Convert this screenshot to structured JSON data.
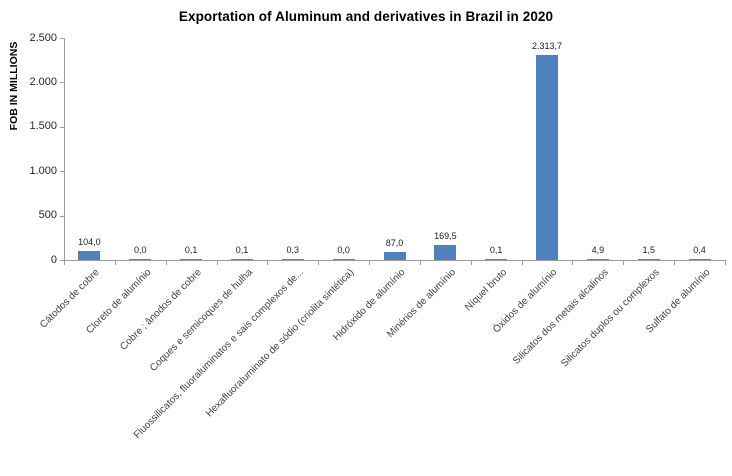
{
  "chart_data": {
    "type": "bar",
    "title": "Exportation of Aluminum and derivatives in Brazil in 2020",
    "xlabel": "",
    "ylabel": "FOB IN MILLIONS",
    "ylim": [
      0,
      2500
    ],
    "ytick_step": 500,
    "ytick_labels": [
      "2.500",
      "2.000",
      "1.500",
      "1.000",
      "500",
      "0"
    ],
    "grid": false,
    "legend": false,
    "bar_color": "#4f81bd",
    "axis_color": "#9c9c9c",
    "categories": [
      "Cátodos de cobre",
      "Cloreto de alumínio",
      "Cobre ; ânodos de cobre",
      "Coques e semicoques de hulha",
      "Fluossilicatos, fluoraluminatos e sais complexos de...",
      "Hexafluoraluminato de sódio (criolita sintética)",
      "Hidróxido de alumínio",
      "Minérios de alumínio",
      "Níquel bruto",
      "Óxidos de alumínio",
      "Silicatos dos metais alcalinos",
      "Silicatos duplos ou complexos",
      "Sulfato de alumínio"
    ],
    "values": [
      104.0,
      0.0,
      0.1,
      0.1,
      0.3,
      0.0,
      87.0,
      169.5,
      0.1,
      2313.7,
      4.9,
      1.5,
      0.4
    ],
    "value_labels": [
      "104,0",
      "0,0",
      "0,1",
      "0,1",
      "0,3",
      "0,0",
      "87,0",
      "169,5",
      "0,1",
      "2.313,7",
      "4,9",
      "1,5",
      "0,4"
    ]
  }
}
